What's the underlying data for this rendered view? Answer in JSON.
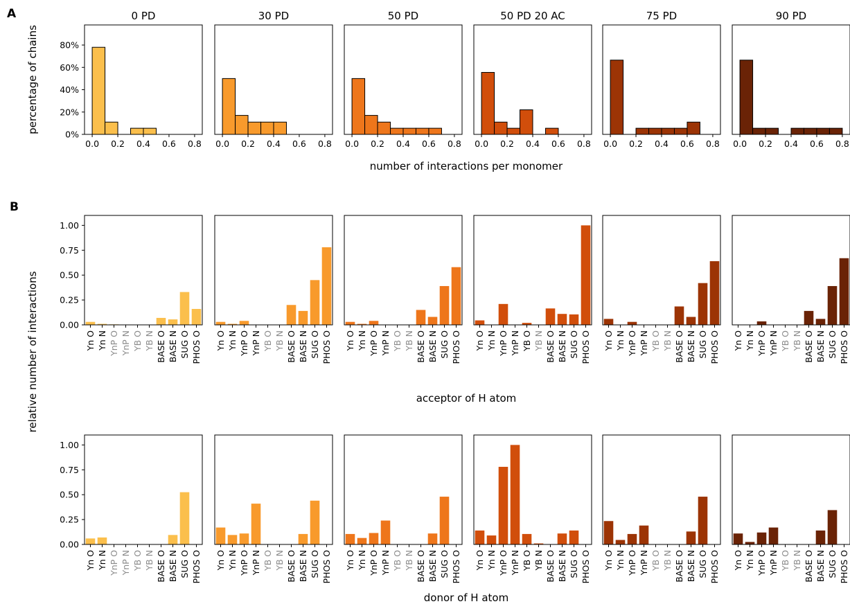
{
  "figure": {
    "panel_labels": [
      "A",
      "B"
    ],
    "panel_a_ylabel": "percentage of chains",
    "panel_a_xlabel": "number of interactions per monomer",
    "panel_b_ylabel": "relative number of interactions",
    "panel_b_acceptor_xlabel": "acceptor of H atom",
    "panel_b_donor_xlabel": "donor of H atom"
  },
  "conditions": [
    {
      "title": "0 PD",
      "color": "#fbbf4c"
    },
    {
      "title": "30 PD",
      "color": "#f89a2c"
    },
    {
      "title": "50 PD",
      "color": "#ee761b"
    },
    {
      "title": "50 PD 20 AC",
      "color": "#d14e0b"
    },
    {
      "title": "75 PD",
      "color": "#9c3405"
    },
    {
      "title": "90 PD",
      "color": "#6a2306"
    }
  ],
  "chart_data": [
    {
      "type": "bar",
      "id": "histograms",
      "xlabel": "number of interactions per monomer",
      "ylabel": "percentage of chains",
      "xlim": [
        -0.06,
        0.86
      ],
      "ylim": [
        0,
        0.98
      ],
      "xticks": [
        0.0,
        0.2,
        0.4,
        0.6,
        0.8
      ],
      "xtick_labels": [
        "0.0",
        "0.2",
        "0.4",
        "0.6",
        "0.8"
      ],
      "yticks": [
        0,
        0.2,
        0.4,
        0.6,
        0.8
      ],
      "ytick_labels": [
        "0%",
        "20%",
        "40%",
        "60%",
        "80%"
      ],
      "bin_width": 0.1,
      "bin_starts": [
        0.0,
        0.1,
        0.2,
        0.3,
        0.4,
        0.5,
        0.6,
        0.7
      ],
      "series": [
        {
          "name": "0 PD",
          "values": [
            0.78,
            0.11,
            0.0,
            0.055,
            0.055,
            0.0,
            0.0,
            0.0
          ]
        },
        {
          "name": "30 PD",
          "values": [
            0.5,
            0.17,
            0.11,
            0.11,
            0.11,
            0.0,
            0.0,
            0.0
          ]
        },
        {
          "name": "50 PD",
          "values": [
            0.5,
            0.17,
            0.11,
            0.055,
            0.055,
            0.055,
            0.055,
            0.0
          ]
        },
        {
          "name": "50 PD 20 AC",
          "values": [
            0.555,
            0.11,
            0.055,
            0.22,
            0.0,
            0.055,
            0.0,
            0.0
          ]
        },
        {
          "name": "75 PD",
          "values": [
            0.665,
            0.0,
            0.055,
            0.055,
            0.055,
            0.055,
            0.11,
            0.0
          ]
        },
        {
          "name": "90 PD",
          "values": [
            0.665,
            0.055,
            0.055,
            0.0,
            0.055,
            0.055,
            0.055,
            0.055
          ]
        }
      ]
    },
    {
      "type": "bar",
      "id": "acceptor",
      "xlabel": "acceptor of H atom",
      "ylabel": "relative number of interactions",
      "ylim": [
        0,
        1.1
      ],
      "yticks": [
        0,
        0.25,
        0.5,
        0.75,
        1.0
      ],
      "ytick_labels": [
        "0.00",
        "0.25",
        "0.50",
        "0.75",
        "1.00"
      ],
      "categories": [
        "Yn O",
        "Yn N",
        "YnP O",
        "YnP N",
        "YB O",
        "YB N",
        "BASE O",
        "BASE N",
        "SUG O",
        "PHOS O"
      ],
      "gray_categories": [
        [
          2,
          3,
          4,
          5
        ],
        [
          4,
          5
        ],
        [
          4,
          5
        ],
        [
          5
        ],
        [
          4,
          5
        ],
        [
          4,
          5
        ]
      ],
      "series": [
        {
          "name": "0 PD",
          "values": [
            0.03,
            0.01,
            0.005,
            0,
            0,
            0,
            0.07,
            0.055,
            0.33,
            0.16
          ]
        },
        {
          "name": "30 PD",
          "values": [
            0.03,
            0.01,
            0.04,
            0,
            0,
            0,
            0.2,
            0.14,
            0.45,
            0.78
          ]
        },
        {
          "name": "50 PD",
          "values": [
            0.03,
            0.01,
            0.04,
            0,
            0,
            0,
            0.15,
            0.08,
            0.39,
            0.58
          ]
        },
        {
          "name": "50 PD 20 AC",
          "values": [
            0.045,
            0,
            0.21,
            0,
            0.02,
            0,
            0.165,
            0.11,
            0.105,
            1.0
          ]
        },
        {
          "name": "75 PD",
          "values": [
            0.06,
            0,
            0.03,
            0,
            0,
            0,
            0.185,
            0.08,
            0.42,
            0.64
          ]
        },
        {
          "name": "90 PD",
          "values": [
            0,
            0,
            0.035,
            0,
            0,
            0,
            0.14,
            0.06,
            0.39,
            0.67
          ]
        }
      ]
    },
    {
      "type": "bar",
      "id": "donor",
      "xlabel": "donor of H atom",
      "ylabel": "relative number of interactions",
      "ylim": [
        0,
        1.1
      ],
      "yticks": [
        0,
        0.25,
        0.5,
        0.75,
        1.0
      ],
      "ytick_labels": [
        "0.00",
        "0.25",
        "0.50",
        "0.75",
        "1.00"
      ],
      "categories": [
        "Yn O",
        "Yn N",
        "YnP O",
        "YnP N",
        "YB O",
        "YB N",
        "BASE O",
        "BASE N",
        "SUG O",
        "PHOS O"
      ],
      "gray_categories": [
        [
          2,
          3,
          4,
          5
        ],
        [
          4,
          5
        ],
        [
          4,
          5
        ],
        [],
        [
          4,
          5
        ],
        [
          4,
          5
        ]
      ],
      "series": [
        {
          "name": "0 PD",
          "values": [
            0.06,
            0.07,
            0,
            0,
            0,
            0,
            0,
            0.095,
            0.525,
            0
          ]
        },
        {
          "name": "30 PD",
          "values": [
            0.17,
            0.095,
            0.11,
            0.41,
            0,
            0,
            0,
            0.105,
            0.44,
            0
          ]
        },
        {
          "name": "50 PD",
          "values": [
            0.105,
            0.065,
            0.115,
            0.24,
            0,
            0,
            0,
            0.11,
            0.48,
            0
          ]
        },
        {
          "name": "50 PD 20 AC",
          "values": [
            0.14,
            0.09,
            0.78,
            1.0,
            0.105,
            0.01,
            0,
            0.11,
            0.14,
            0
          ]
        },
        {
          "name": "75 PD",
          "values": [
            0.235,
            0.045,
            0.105,
            0.19,
            0,
            0,
            0,
            0.13,
            0.48,
            0
          ]
        },
        {
          "name": "90 PD",
          "values": [
            0.11,
            0.025,
            0.12,
            0.17,
            0,
            0,
            0,
            0.14,
            0.345,
            0
          ]
        }
      ]
    }
  ]
}
